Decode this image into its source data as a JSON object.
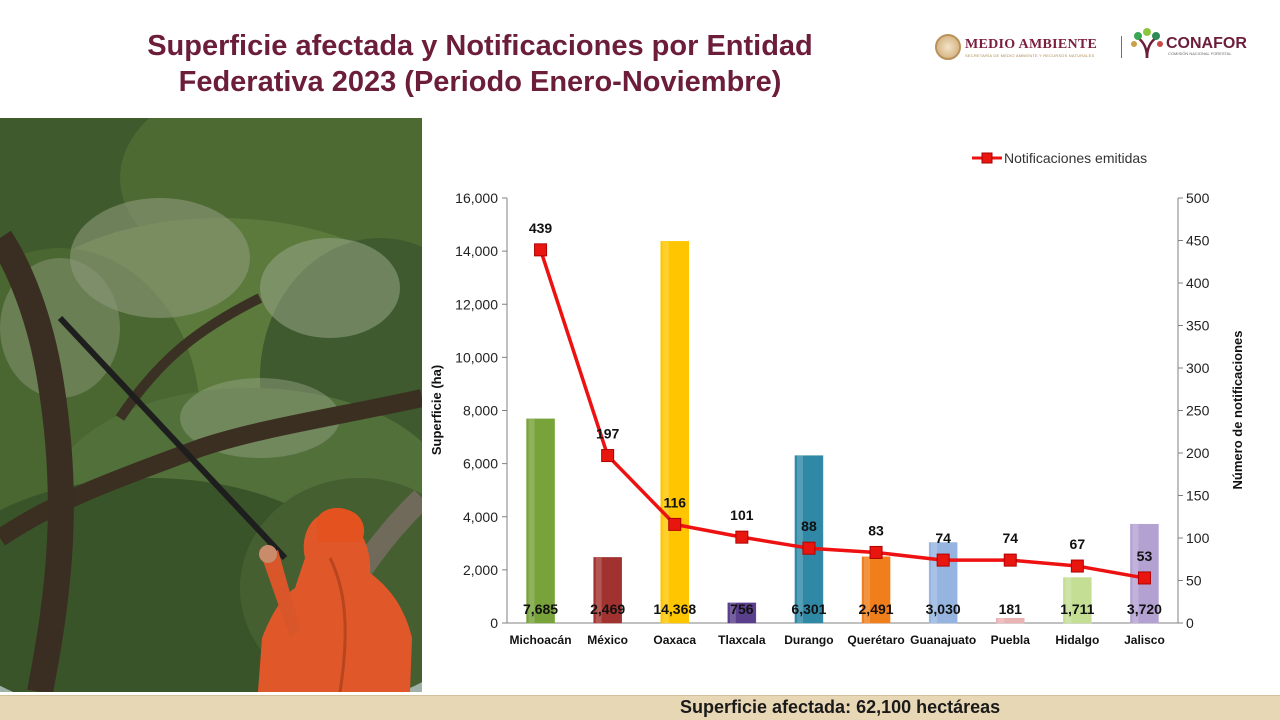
{
  "header": {
    "title_line1": "Superficie afectada y Notificaciones por Entidad",
    "title_line2": "Federativa 2023 (Periodo Enero-Noviembre)"
  },
  "logos": {
    "medio_ambiente": "MEDIO AMBIENTE",
    "medio_ambiente_sub": "SECRETARÍA DE MEDIO AMBIENTE Y RECURSOS NATURALES",
    "conafor": "CONAFOR",
    "conafor_sub": "COMISIÓN NACIONAL FORESTAL"
  },
  "footer": {
    "label": "Superficie afectada: 62,100 hectáreas"
  },
  "colors": {
    "title": "#6b1d3a",
    "line": "#ee1111",
    "marker": "#e8160f"
  },
  "chart_data": {
    "type": "bar",
    "categories": [
      "Michoacán",
      "México",
      "Oaxaca",
      "Tlaxcala",
      "Durango",
      "Querétaro",
      "Guanajuato",
      "Puebla",
      "Hidalgo",
      "Jalisco"
    ],
    "bar_colors": [
      "#77a33a",
      "#a2322f",
      "#ffc600",
      "#5a3f8c",
      "#2f89a6",
      "#f07e1a",
      "#95b5e0",
      "#e9b3b4",
      "#c4df94",
      "#b3a1d2"
    ],
    "series": [
      {
        "type": "bar",
        "axis": "left",
        "values": [
          7685,
          2469,
          14368,
          756,
          6301,
          2491,
          3030,
          181,
          1711,
          3720
        ],
        "labels": [
          "7,685",
          "2,469",
          "14,368",
          "756",
          "6,301",
          "2,491",
          "3,030",
          "181",
          "1,711",
          "3,720"
        ]
      },
      {
        "name": "Notificaciones emitidas",
        "type": "line",
        "axis": "right",
        "values": [
          439,
          197,
          116,
          101,
          88,
          83,
          74,
          74,
          67,
          53
        ],
        "labels": [
          "439",
          "197",
          "116",
          "101",
          "88",
          "83",
          "74",
          "74",
          "67",
          "53"
        ]
      }
    ],
    "ylabel": "Superficie (ha)",
    "y2label": "Número de notificaciones",
    "ylim": [
      0,
      16000
    ],
    "y2lim": [
      0,
      500
    ],
    "yticks": [
      "0",
      "2,000",
      "4,000",
      "6,000",
      "8,000",
      "10,000",
      "12,000",
      "14,000",
      "16,000"
    ],
    "y2ticks": [
      "0",
      "50",
      "100",
      "150",
      "200",
      "250",
      "300",
      "350",
      "400",
      "450",
      "500"
    ],
    "legend": "top-right",
    "grid": false
  }
}
